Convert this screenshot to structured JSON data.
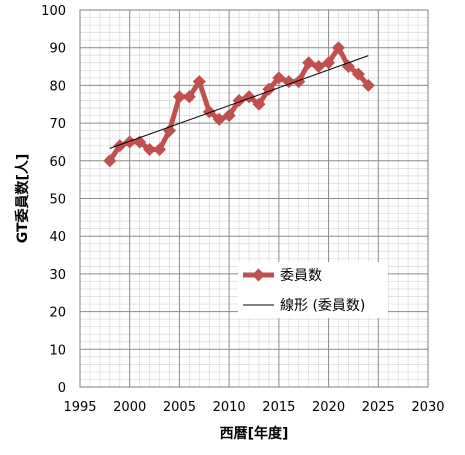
{
  "chart_data": {
    "type": "line",
    "xlabel": "西暦[年度]",
    "ylabel": "GT委員数[人]",
    "xlim": [
      1995,
      2030
    ],
    "ylim": [
      0,
      100
    ],
    "x_ticks": [
      1995,
      2000,
      2005,
      2010,
      2015,
      2020,
      2025,
      2030
    ],
    "y_ticks": [
      0,
      10,
      20,
      30,
      40,
      50,
      60,
      70,
      80,
      90,
      100
    ],
    "grid": true,
    "legend_position": "center-right",
    "series": [
      {
        "name": "委員数",
        "color": "#C0504D",
        "marker": "diamond",
        "x": [
          1998,
          1999,
          2000,
          2001,
          2002,
          2003,
          2004,
          2005,
          2006,
          2007,
          2008,
          2009,
          2010,
          2011,
          2012,
          2013,
          2014,
          2015,
          2016,
          2017,
          2018,
          2019,
          2020,
          2021,
          2022,
          2023,
          2024
        ],
        "y": [
          60,
          64,
          65,
          65,
          63,
          63,
          68,
          77,
          77,
          81,
          73,
          71,
          72,
          76,
          77,
          75,
          79,
          82,
          81,
          81,
          86,
          85,
          86,
          90,
          85,
          83,
          80
        ]
      }
    ],
    "trendline": {
      "name": "線形 (委員数)",
      "color": "#000000",
      "x": [
        1998,
        2024
      ],
      "y": [
        63.3,
        87.9
      ]
    }
  }
}
